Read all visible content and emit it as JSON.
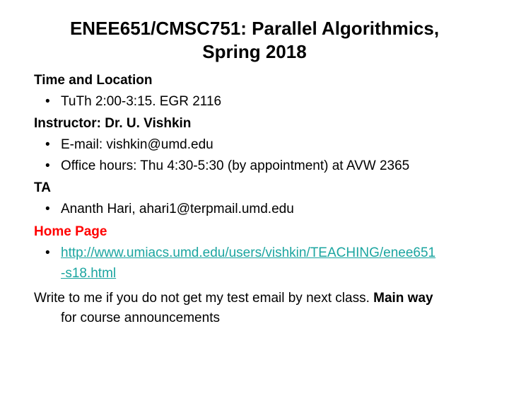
{
  "title_line1": "ENEE651/CMSC751: Parallel Algorithmics,",
  "title_line2": "Spring 2018",
  "sec_time_loc": "Time and Location",
  "time_loc_item": "TuTh 2:00-3:15. EGR 2116",
  "sec_instructor": "Instructor: Dr. U. Vishkin",
  "instr_email": "E-mail: vishkin@umd.edu",
  "instr_office": "Office hours: Thu 4:30-5:30 (by appointment) at AVW 2365",
  "sec_ta": "TA",
  "ta_item": "Ananth Hari, ahari1@terpmail.umd.edu",
  "sec_home": "Home Page",
  "home_url_line1": "http://www.umiacs.umd.edu/users/vishkin/TEACHING/enee651",
  "home_url_line2": "-s18.html",
  "note_a": "Write to me if you do not get my test email by next class. ",
  "note_bold": "Main way",
  "note_b": " for course announcements",
  "colors": {
    "text": "#000000",
    "link": "#1ba5a0",
    "accent_red": "#ff0000",
    "background": "#ffffff"
  },
  "fontsize": {
    "title": 26,
    "body": 19
  }
}
